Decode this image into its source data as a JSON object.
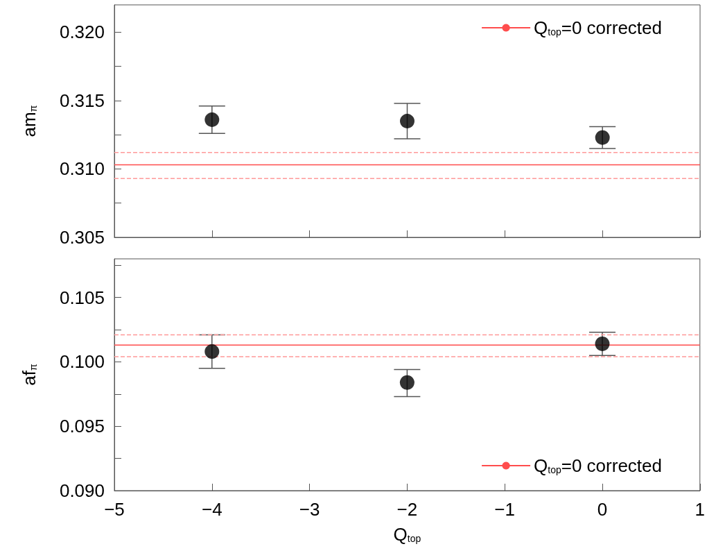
{
  "chart_data": [
    {
      "type": "scatter",
      "ylabel": "am$_{π}$",
      "x": [
        -4,
        -2,
        0
      ],
      "values": [
        0.3136,
        0.3135,
        0.3123
      ],
      "errors": [
        [
          0.3126,
          0.3146
        ],
        [
          0.3122,
          0.3148
        ],
        [
          0.3115,
          0.3131
        ]
      ],
      "color": "#000000",
      "marker": "circle",
      "xlim": [
        -5,
        1
      ],
      "xticks": [
        -5,
        -4,
        -3,
        -2,
        -1,
        0,
        1
      ],
      "ylim": [
        0.305,
        0.322
      ],
      "yticks": [
        {
          "value": 0.305,
          "label": "0.305"
        },
        {
          "value": 0.3075,
          "label": null
        },
        {
          "value": 0.31,
          "label": "0.310"
        },
        {
          "value": 0.3125,
          "label": null
        },
        {
          "value": 0.315,
          "label": "0.315"
        },
        {
          "value": 0.3175,
          "label": null
        },
        {
          "value": 0.32,
          "label": "0.320"
        }
      ],
      "tick_labels": "y",
      "grid": false,
      "legend": "top right",
      "ref_lines": [
        {
          "axis": "y",
          "value": 0.3103,
          "label": "Q$_{top}$=0 corrected",
          "color": "#ff4d4d",
          "line_style": "solid"
        },
        {
          "axis": "y",
          "value": 0.3112,
          "color": "#ff9999",
          "line_style": "dashed"
        },
        {
          "axis": "y",
          "value": 0.3093,
          "color": "#ff9999",
          "line_style": "dashed"
        }
      ]
    },
    {
      "type": "scatter",
      "xlabel": "Q$_{top}$",
      "ylabel": "af$_{π}$",
      "x": [
        -4,
        -2,
        0
      ],
      "values": [
        0.1008,
        0.0984,
        0.1014
      ],
      "errors": [
        [
          0.0995,
          0.1021
        ],
        [
          0.0973,
          0.0994
        ],
        [
          0.1005,
          0.1023
        ]
      ],
      "color": "#000000",
      "marker": "circle",
      "xlim": [
        -5,
        1
      ],
      "xticks": [
        -5,
        -4,
        -3,
        -2,
        -1,
        0,
        1
      ],
      "ylim": [
        0.09,
        0.108
      ],
      "yticks": [
        {
          "value": 0.09,
          "label": "0.090"
        },
        {
          "value": 0.0925,
          "label": null
        },
        {
          "value": 0.095,
          "label": "0.095"
        },
        {
          "value": 0.0975,
          "label": null
        },
        {
          "value": 0.1,
          "label": "0.100"
        },
        {
          "value": 0.1025,
          "label": null
        },
        {
          "value": 0.105,
          "label": "0.105"
        },
        {
          "value": 0.1075,
          "label": null
        }
      ],
      "grid": false,
      "legend": "bottom right",
      "ref_lines": [
        {
          "axis": "y",
          "value": 0.1013,
          "label": "Q$_{top}$=0 corrected",
          "color": "#ff4d4d",
          "line_style": "solid"
        },
        {
          "axis": "y",
          "value": 0.1021,
          "color": "#ff9999",
          "line_style": "dashed"
        },
        {
          "axis": "y",
          "value": 0.1004,
          "color": "#ff9999",
          "line_style": "dashed"
        }
      ]
    }
  ]
}
